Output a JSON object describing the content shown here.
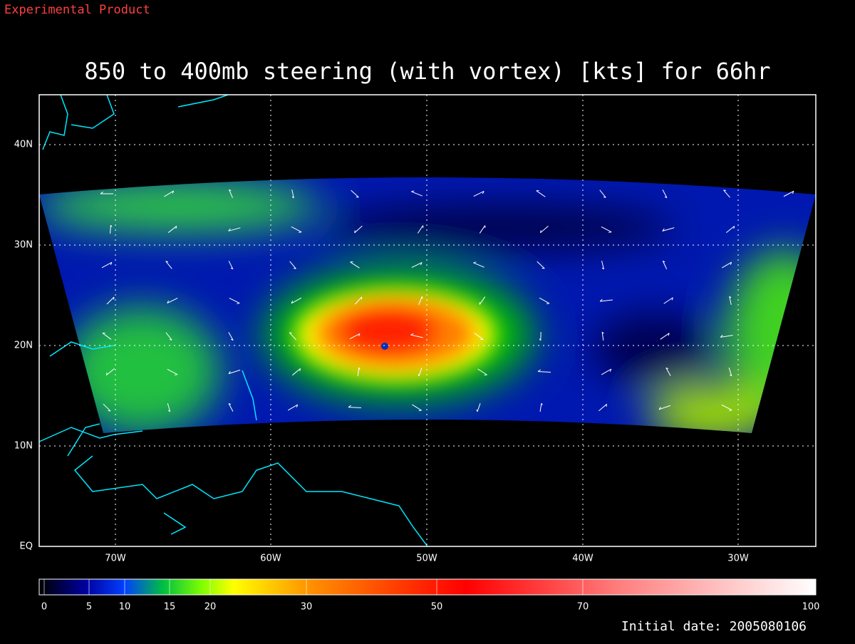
{
  "header": {
    "label": "Experimental Product",
    "title": "850 to 400mb steering (with vortex) [kts] for 66hr"
  },
  "map": {
    "lat_labels": [
      "40N",
      "30N",
      "20N",
      "10N",
      "EQ"
    ],
    "lon_labels": [
      "70W",
      "60W",
      "50W",
      "40W",
      "30W"
    ]
  },
  "colorbar": {
    "labels": [
      0,
      5,
      10,
      15,
      20,
      30,
      50,
      70,
      100
    ]
  },
  "footer": {
    "initial_date": "Initial date: 2005080106"
  }
}
